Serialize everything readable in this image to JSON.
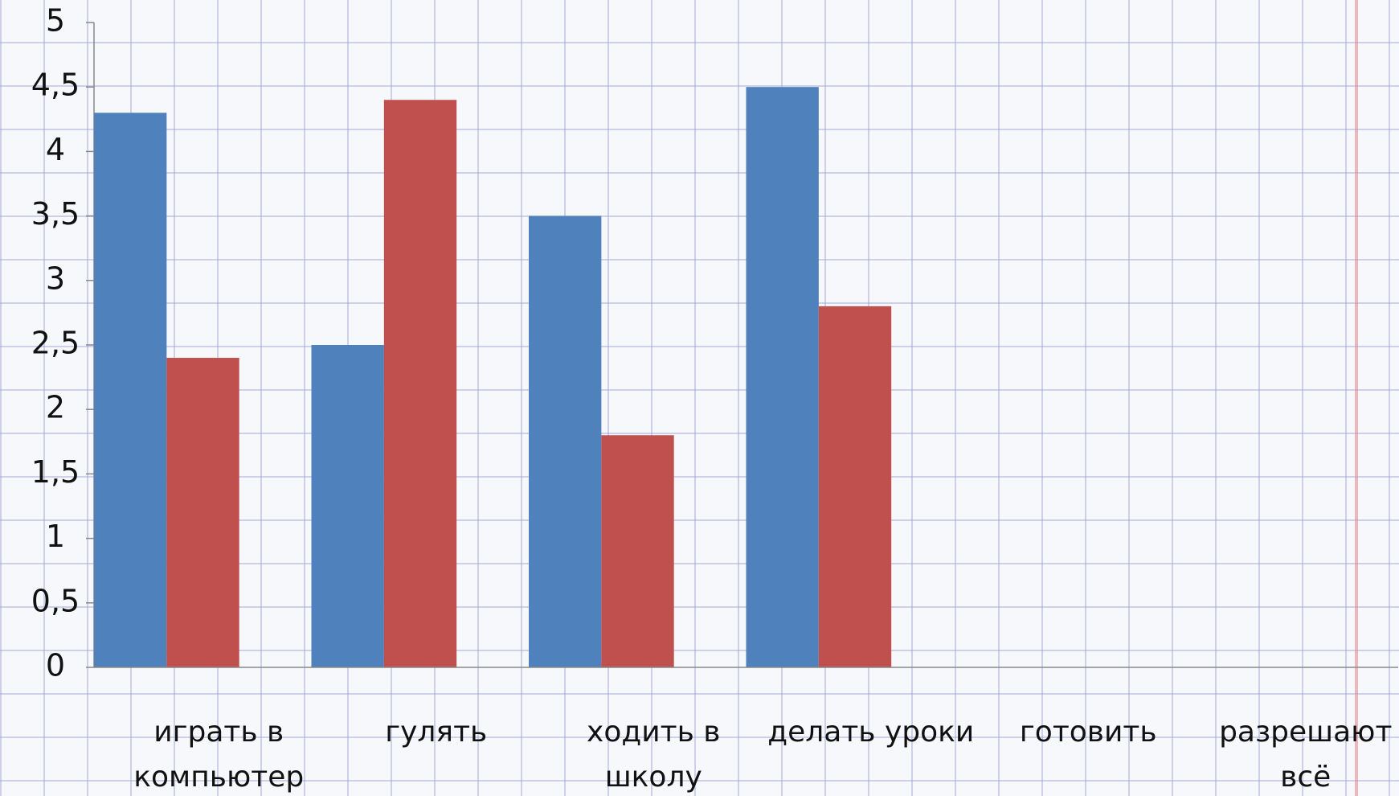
{
  "chart_data": {
    "type": "bar",
    "categories": [
      "играть в компьютер",
      "гулять",
      "ходить в школу",
      "делать уроки",
      "готовить",
      "разрешают всё"
    ],
    "series": [
      {
        "color": "#4f81bd",
        "values": [
          4.3,
          2.5,
          3.5,
          4.5,
          null,
          null
        ]
      },
      {
        "color": "#c0504d",
        "values": [
          2.4,
          4.4,
          1.8,
          2.8,
          null,
          null
        ]
      }
    ],
    "ylim": [
      0,
      5
    ],
    "yticks": [
      0,
      {
        "value": 0.5,
        "label": "0,5"
      },
      1,
      {
        "value": 1.5,
        "label": "1,5"
      },
      2,
      {
        "value": 2.5,
        "label": "2,5"
      },
      3,
      {
        "value": 3.5,
        "label": "3,5"
      },
      4,
      {
        "value": 4.5,
        "label": "4,5"
      },
      5
    ]
  }
}
